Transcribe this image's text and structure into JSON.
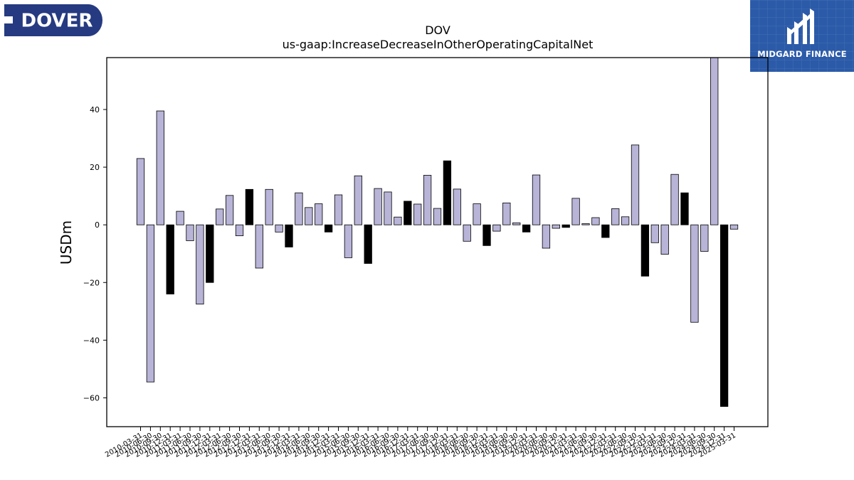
{
  "brand": {
    "left_logo_text": "DOVER",
    "left_logo_color": "#253a80",
    "right_logo_name": "MIDGARD FINANCE",
    "right_logo_color": "#2b5aa8"
  },
  "chart_data": {
    "type": "bar",
    "title": "DOV",
    "subtitle": "us-gaap:IncreaseDecreaseInOtherOperatingCapitalNet",
    "ylabel": "USDm",
    "xlabel": "",
    "ylim": [
      -70,
      58
    ],
    "yticks": [
      -60,
      -40,
      -20,
      0,
      20,
      40
    ],
    "grid": false,
    "colors": {
      "default_fill": "#b8b4d8",
      "highlight_fill": "#000000",
      "edge": "#000000"
    },
    "categories": [
      "2010-03-31",
      "2010-06-30",
      "2010-09-30",
      "2010-12-31",
      "2011-03-31",
      "2011-06-30",
      "2011-09-30",
      "2011-12-31",
      "2012-03-31",
      "2012-06-30",
      "2012-09-30",
      "2012-12-31",
      "2013-03-31",
      "2013-06-30",
      "2013-09-30",
      "2013-12-31",
      "2014-03-31",
      "2014-06-30",
      "2014-09-30",
      "2014-12-31",
      "2015-03-31",
      "2015-06-30",
      "2015-09-30",
      "2015-12-31",
      "2016-03-31",
      "2016-06-30",
      "2016-09-30",
      "2016-12-31",
      "2017-03-31",
      "2017-06-30",
      "2017-09-30",
      "2017-12-31",
      "2018-03-31",
      "2018-06-30",
      "2018-09-30",
      "2018-12-31",
      "2019-03-31",
      "2019-06-30",
      "2019-09-30",
      "2019-12-31",
      "2020-03-31",
      "2020-06-30",
      "2020-09-30",
      "2020-12-31",
      "2021-03-31",
      "2021-06-30",
      "2021-09-30",
      "2021-12-31",
      "2022-03-31",
      "2022-06-30",
      "2022-09-30",
      "2022-12-31",
      "2023-03-31",
      "2023-06-30",
      "2023-09-30",
      "2023-12-31",
      "2024-03-31",
      "2024-06-30",
      "2024-09-30",
      "2024-12-31",
      "2025-03-31"
    ],
    "tick_labels": [
      "2010-03-31",
      "2010-06-30",
      "2010-09-30",
      "2010-12-31",
      "2011-03-31",
      "2011-06-30",
      "2011-09-30",
      "2011-12-31",
      "2012-03-31",
      "2012-06-30",
      "2012-09-30",
      "2012-12-31",
      "2013-03-31",
      "2013-06-30",
      "2013-09-30",
      "2013-12-31",
      "2014-03-31",
      "2014-06-30",
      "2014-09-30",
      "2014-12-31",
      "2015-03-31",
      "2015-06-30",
      "2015-09-30",
      "2015-12-31",
      "2016-03-31",
      "2016-06-30",
      "2016-09-30",
      "2016-12-31",
      "2017-03-31",
      "2017-06-30",
      "2017-09-30",
      "2017-12-31",
      "2018-03-31",
      "2018-06-30",
      "2018-09-30",
      "2018-12-31",
      "2019-03-31",
      "2019-06-30",
      "2019-09-30",
      "2019-12-31",
      "2020-03-31",
      "2020-06-30",
      "2020-09-30",
      "2020-12-31",
      "2021-03-31",
      "2021-06-30",
      "2021-09-30",
      "2021-12-31",
      "2022-03-31",
      "2022-06-30",
      "2022-09-30",
      "2022-12-31",
      "2023-03-31",
      "2023-06-30",
      "2023-09-30",
      "2023-12-31",
      "2024-03-31",
      "2024-06-30",
      "2024-09-30",
      "2024-12-31",
      "2025-03-31"
    ],
    "values": [
      23,
      -54.5,
      39.5,
      -24,
      4.7,
      -5.5,
      -27.5,
      -20,
      5.5,
      10.2,
      -3.8,
      12.3,
      -15,
      12.3,
      -2.5,
      -7.7,
      11.1,
      6,
      7.3,
      -2.5,
      10.4,
      -11.4,
      17,
      -13.4,
      12.6,
      11.4,
      2.7,
      8.2,
      7.2,
      17.2,
      5.7,
      22.2,
      12.4,
      -5.7,
      7.3,
      -7.2,
      -2.2,
      7.6,
      0.7,
      -2.5,
      17.3,
      -8.1,
      -1.2,
      -0.9,
      9.2,
      0.4,
      2.5,
      -4.4,
      5.6,
      2.8,
      27.7,
      -17.8,
      -6.2,
      -10.2,
      17.5,
      11.1,
      -33.8,
      -9.2,
      58,
      -63,
      -1.5
    ],
    "highlight": [
      false,
      false,
      false,
      true,
      false,
      false,
      false,
      true,
      false,
      false,
      false,
      true,
      false,
      false,
      false,
      true,
      false,
      false,
      false,
      true,
      false,
      false,
      false,
      true,
      false,
      false,
      false,
      true,
      false,
      false,
      false,
      true,
      false,
      false,
      false,
      true,
      false,
      false,
      false,
      true,
      false,
      false,
      false,
      true,
      false,
      false,
      false,
      true,
      false,
      false,
      false,
      true,
      false,
      false,
      false,
      true,
      false,
      false,
      false,
      true,
      false
    ]
  }
}
